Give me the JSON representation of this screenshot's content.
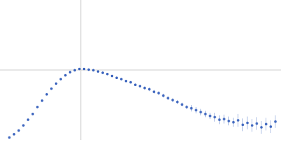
{
  "chart_data": {
    "type": "scatter",
    "xlim": [
      0,
      6.02
    ],
    "ylim": [
      0,
      2.208
    ],
    "reference_lines": {
      "x": 1.73,
      "y": 1.104,
      "color": "#cccccc"
    },
    "x": [
      0.2,
      0.3,
      0.4,
      0.5,
      0.6,
      0.7,
      0.8,
      0.9,
      1.0,
      1.1,
      1.2,
      1.3,
      1.4,
      1.5,
      1.6,
      1.7,
      1.8,
      1.9,
      2.0,
      2.1,
      2.2,
      2.3,
      2.4,
      2.5,
      2.6,
      2.7,
      2.8,
      2.9,
      3.0,
      3.1,
      3.2,
      3.3,
      3.4,
      3.5,
      3.6,
      3.7,
      3.8,
      3.9,
      4.0,
      4.1,
      4.2,
      4.3,
      4.4,
      4.5,
      4.6,
      4.7,
      4.8,
      4.9,
      5.0,
      5.1,
      5.2,
      5.3,
      5.4,
      5.5,
      5.6,
      5.7,
      5.8,
      5.9
    ],
    "series": [
      {
        "color": "#3f67bf",
        "error_color": "#a9bce3",
        "values": [
          0.04,
          0.09,
          0.15,
          0.23,
          0.32,
          0.41,
          0.52,
          0.62,
          0.72,
          0.81,
          0.89,
          0.96,
          1.02,
          1.07,
          1.1,
          1.12,
          1.12,
          1.11,
          1.1,
          1.08,
          1.06,
          1.04,
          1.01,
          0.98,
          0.96,
          0.93,
          0.91,
          0.87,
          0.85,
          0.82,
          0.8,
          0.76,
          0.74,
          0.7,
          0.66,
          0.63,
          0.6,
          0.56,
          0.52,
          0.5,
          0.47,
          0.44,
          0.41,
          0.38,
          0.36,
          0.32,
          0.33,
          0.3,
          0.28,
          0.31,
          0.24,
          0.27,
          0.23,
          0.26,
          0.2,
          0.25,
          0.21,
          0.29
        ],
        "errors": [
          0.01,
          0.01,
          0.01,
          0.01,
          0.01,
          0.01,
          0.01,
          0.01,
          0.01,
          0.01,
          0.01,
          0.01,
          0.01,
          0.01,
          0.01,
          0.01,
          0.01,
          0.01,
          0.01,
          0.02,
          0.02,
          0.02,
          0.02,
          0.02,
          0.02,
          0.02,
          0.02,
          0.02,
          0.02,
          0.03,
          0.03,
          0.03,
          0.03,
          0.03,
          0.03,
          0.03,
          0.03,
          0.03,
          0.03,
          0.05,
          0.05,
          0.05,
          0.05,
          0.05,
          0.07,
          0.07,
          0.07,
          0.07,
          0.07,
          0.1,
          0.1,
          0.1,
          0.1,
          0.1,
          0.1,
          0.1,
          0.1,
          0.1
        ]
      }
    ]
  }
}
